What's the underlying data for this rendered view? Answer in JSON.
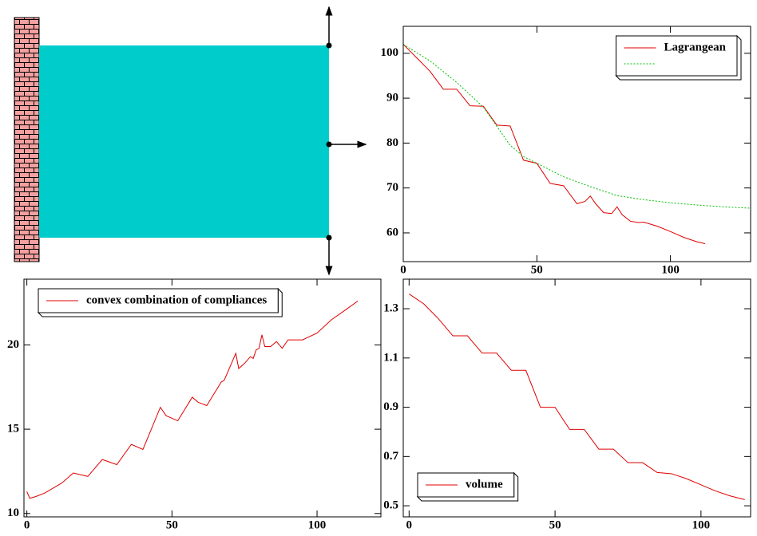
{
  "chart_data": [
    {
      "type": "line",
      "legend": "top-right",
      "xlim": [
        0,
        130
      ],
      "xticks": [
        0,
        50,
        100
      ],
      "ylim": [
        53.6,
        106
      ],
      "yticks": [
        60,
        70,
        80,
        90,
        100
      ],
      "series": [
        {
          "name": "Lagrangean",
          "color": "#e00000",
          "style": "solid",
          "x": [
            0,
            5,
            10,
            15,
            20,
            25,
            30,
            35,
            40,
            45,
            50,
            55,
            60,
            65,
            68,
            70,
            72,
            75,
            78,
            80,
            82,
            85,
            88,
            90,
            95,
            100,
            105,
            110,
            113
          ],
          "values": [
            102,
            99,
            96,
            92,
            92,
            88.3,
            88.2,
            84,
            83.8,
            76.2,
            75.5,
            71,
            70.5,
            66.5,
            67,
            68.2,
            66.5,
            64.5,
            64.3,
            65.8,
            64,
            62.6,
            62.3,
            62.4,
            61.5,
            60.3,
            59,
            58,
            57.6
          ]
        },
        {
          "color": "#00c000",
          "style": "dotted",
          "x": [
            0,
            10,
            20,
            30,
            40,
            45,
            50,
            60,
            70,
            80,
            90,
            100,
            110,
            120,
            130
          ],
          "values": [
            102,
            98.3,
            93.5,
            88,
            79.5,
            77,
            75.5,
            72.5,
            70.3,
            68.3,
            67.4,
            66.7,
            66.2,
            65.8,
            65.5
          ]
        }
      ]
    },
    {
      "type": "line",
      "legend": "top-left",
      "xlim": [
        -1,
        122
      ],
      "xticks": [
        0,
        50,
        100
      ],
      "ylim": [
        9.8,
        23.9
      ],
      "yticks": [
        10,
        15,
        20
      ],
      "series": [
        {
          "name": "convex combination of compliances",
          "color": "#e00000",
          "style": "solid",
          "x": [
            0,
            1,
            3,
            6,
            10,
            12,
            16,
            21,
            26,
            31,
            36,
            40,
            46,
            48,
            52,
            57,
            59,
            62,
            67,
            68,
            70,
            72,
            73,
            75,
            77,
            78,
            79,
            80,
            81,
            82,
            84,
            86,
            88,
            90,
            95,
            100,
            105,
            110,
            114
          ],
          "values": [
            11.3,
            10.9,
            11,
            11.2,
            11.6,
            11.8,
            12.4,
            12.2,
            13.2,
            12.9,
            14.1,
            13.8,
            16.3,
            15.8,
            15.5,
            16.9,
            16.6,
            16.4,
            17.8,
            17.9,
            18.7,
            19.5,
            18.6,
            18.9,
            19.3,
            19.2,
            19.7,
            19.8,
            20.6,
            19.9,
            19.9,
            20.2,
            19.8,
            20.3,
            20.3,
            20.7,
            21.5,
            22.1,
            22.6
          ]
        }
      ]
    },
    {
      "type": "line",
      "legend": "bottom-left",
      "xlim": [
        -2,
        117
      ],
      "xticks": [
        0,
        50,
        100
      ],
      "ylim": [
        0.455,
        1.42
      ],
      "yticks": [
        0.5,
        0.7,
        0.9,
        1.1,
        1.3
      ],
      "series": [
        {
          "name": "volume",
          "color": "#e00000",
          "style": "solid",
          "x": [
            0,
            5,
            10,
            15,
            20,
            25,
            30,
            35,
            40,
            45,
            50,
            55,
            60,
            65,
            70,
            75,
            80,
            85,
            90,
            95,
            100,
            105,
            110,
            115
          ],
          "values": [
            1.36,
            1.32,
            1.26,
            1.19,
            1.19,
            1.12,
            1.12,
            1.05,
            1.05,
            0.9,
            0.9,
            0.81,
            0.81,
            0.73,
            0.73,
            0.675,
            0.675,
            0.635,
            0.63,
            0.61,
            0.585,
            0.56,
            0.54,
            0.525
          ]
        }
      ]
    }
  ]
}
